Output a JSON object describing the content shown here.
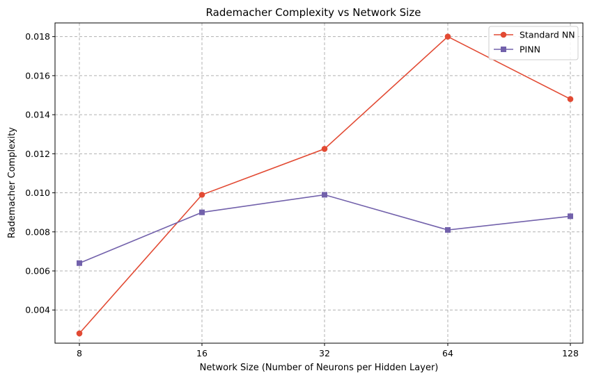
{
  "chart_data": {
    "type": "line",
    "title": "Rademacher Complexity vs Network Size",
    "xlabel": "Network Size (Number of Neurons per Hidden Layer)",
    "ylabel": "Rademacher Complexity",
    "categories": [
      "8",
      "16",
      "32",
      "64",
      "128"
    ],
    "yticks": [
      "0.004",
      "0.006",
      "0.008",
      "0.010",
      "0.012",
      "0.014",
      "0.016",
      "0.018"
    ],
    "ylim": [
      0.0023,
      0.0187
    ],
    "grid": true,
    "legend_position": "top-right",
    "series": [
      {
        "name": "Standard NN",
        "color": "#e24a33",
        "marker": "circle",
        "values": [
          0.0028,
          0.0099,
          0.01225,
          0.018,
          0.0148
        ]
      },
      {
        "name": "PINN",
        "color": "#7261ab",
        "marker": "square",
        "values": [
          0.0064,
          0.009,
          0.0099,
          0.0081,
          0.0088
        ]
      }
    ]
  }
}
